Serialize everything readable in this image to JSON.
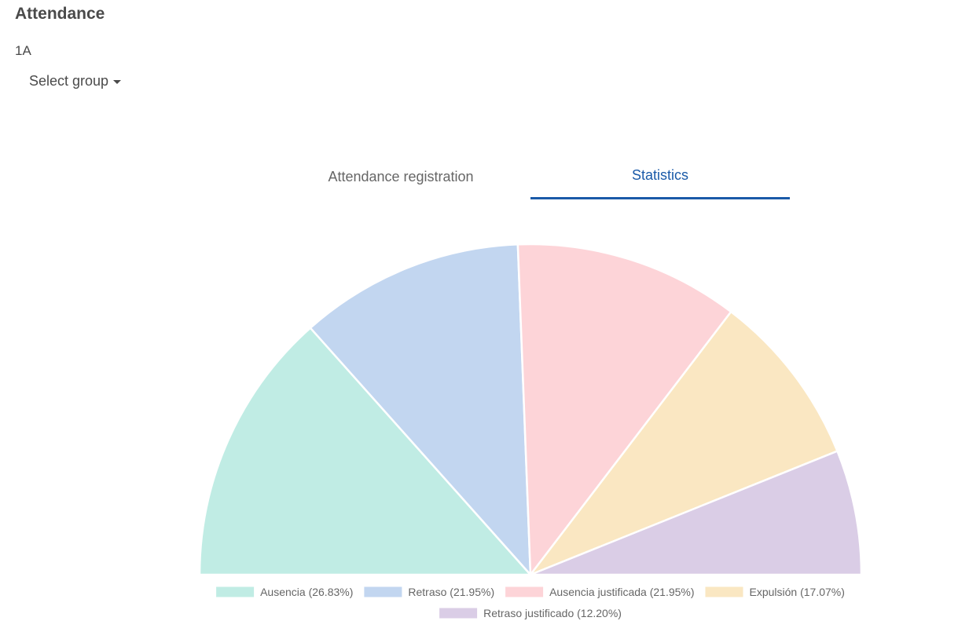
{
  "header": {
    "title": "Attendance",
    "group": "1A",
    "select_label": "Select group"
  },
  "tabs": [
    {
      "label": "Attendance registration",
      "active": false
    },
    {
      "label": "Statistics",
      "active": true
    }
  ],
  "colors": {
    "accent": "#1a5aa8",
    "text": "#4a4a4a",
    "muted": "#666666"
  },
  "chart_data": {
    "type": "pie",
    "variant": "half-doughnut",
    "title": "",
    "legend_position": "bottom",
    "categories": [
      "Ausencia",
      "Retraso",
      "Ausencia justificada",
      "Expulsión",
      "Retraso justificado"
    ],
    "values": [
      26.83,
      21.95,
      21.95,
      17.07,
      12.2
    ],
    "legend_labels": [
      "Ausencia (26.83%)",
      "Retraso (21.95%)",
      "Ausencia justificada (21.95%)",
      "Expulsión (17.07%)",
      "Retraso justificado (12.20%)"
    ],
    "colors": [
      "#c0ece4",
      "#c2d6f0",
      "#fdd4d8",
      "#fae7c2",
      "#dacde6"
    ]
  }
}
